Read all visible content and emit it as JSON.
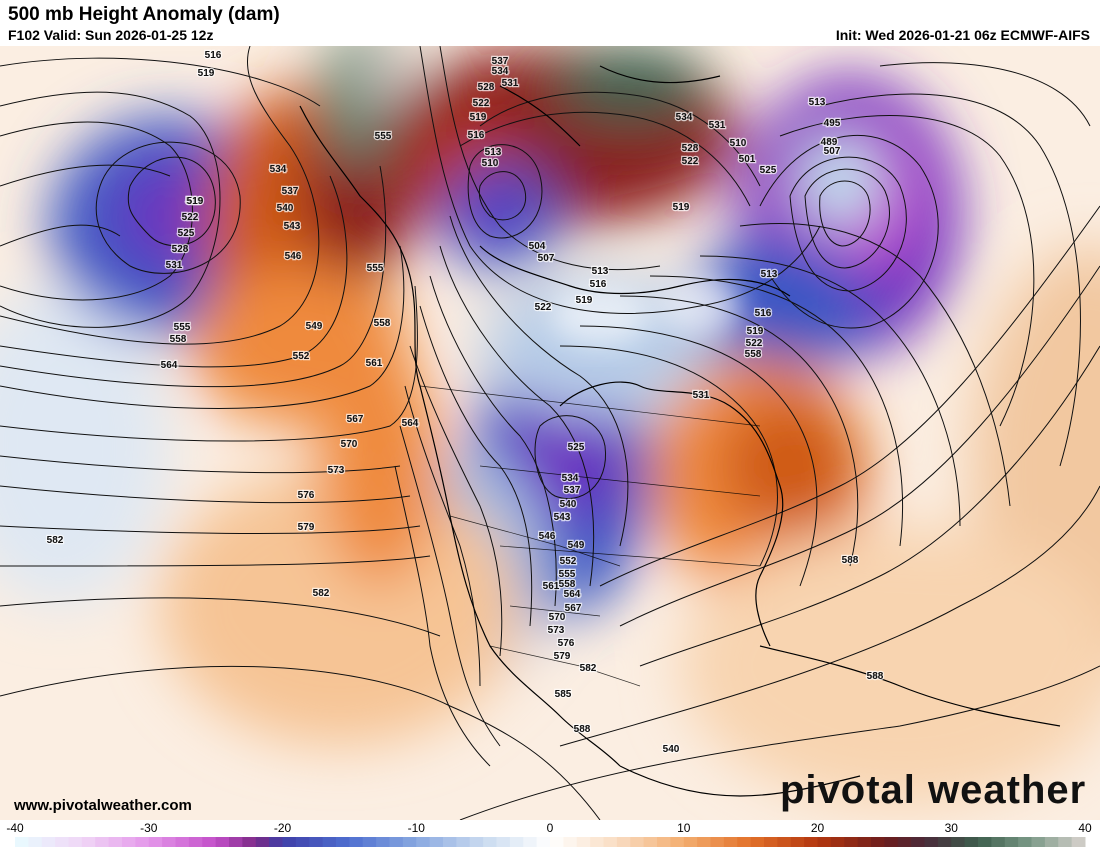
{
  "header": {
    "title": "500 mb Height Anomaly (dam)",
    "valid": "F102 Valid: Sun 2026-01-25 12z",
    "init": "Init: Wed 2026-01-21 06z ECMWF-AIFS"
  },
  "footer": {
    "website": "www.pivotalweather.com",
    "brand": "pivotal weather"
  },
  "colorbar": {
    "ticks": [
      "-40",
      "-30",
      "-20",
      "-10",
      "0",
      "10",
      "20",
      "30",
      "40"
    ],
    "values": [
      -40,
      -30,
      -20,
      -10,
      0,
      10,
      20,
      30,
      40
    ],
    "colors": [
      "#e9fbff",
      "#f1d2f5",
      "#e08ae7",
      "#c64ad0",
      "#7b2590",
      "#8b1a1a",
      "#c8480c",
      "#ef7b2c",
      "#f5b87a",
      "#ffffff",
      "#cfe0ef",
      "#97b7e0",
      "#3f5ec8",
      "#6a2ac0",
      "#a44ac9",
      "#5c0f3c",
      "#8c3b22",
      "#3d5e4d",
      "#6b8a7a",
      "#d8d0cc"
    ]
  },
  "contour_labels": [
    "516",
    "519",
    "519",
    "534",
    "537",
    "540",
    "543",
    "546",
    "549",
    "552",
    "555",
    "558",
    "561",
    "564",
    "567",
    "570",
    "573",
    "576",
    "579",
    "582",
    "582",
    "519",
    "522",
    "525",
    "528",
    "531",
    "555",
    "558",
    "564",
    "537",
    "534",
    "531",
    "528",
    "522",
    "519",
    "516",
    "513",
    "510",
    "504",
    "507",
    "513",
    "516",
    "519",
    "522",
    "525",
    "531",
    "534",
    "537",
    "540",
    "543",
    "546",
    "549",
    "552",
    "555",
    "558",
    "561",
    "564",
    "567",
    "570",
    "573",
    "576",
    "579",
    "582",
    "585",
    "588",
    "588",
    "588",
    "540",
    "534",
    "531",
    "528",
    "522",
    "519",
    "510",
    "501",
    "525",
    "513",
    "495",
    "489",
    "507",
    "513",
    "516",
    "519",
    "522",
    "558",
    "555"
  ],
  "map": {
    "colors": {
      "ocean_base": "#fbeee2",
      "strong_neg": "#5a1fb0",
      "neg": "#3b56c4",
      "weak_neg": "#b8cde8",
      "strong_pos": "#8a1f1f",
      "pos": "#cf5a12",
      "weak_pos": "#f6c495",
      "extreme_neg": "#bff3f5",
      "gray_green": "#5f8a74"
    }
  }
}
